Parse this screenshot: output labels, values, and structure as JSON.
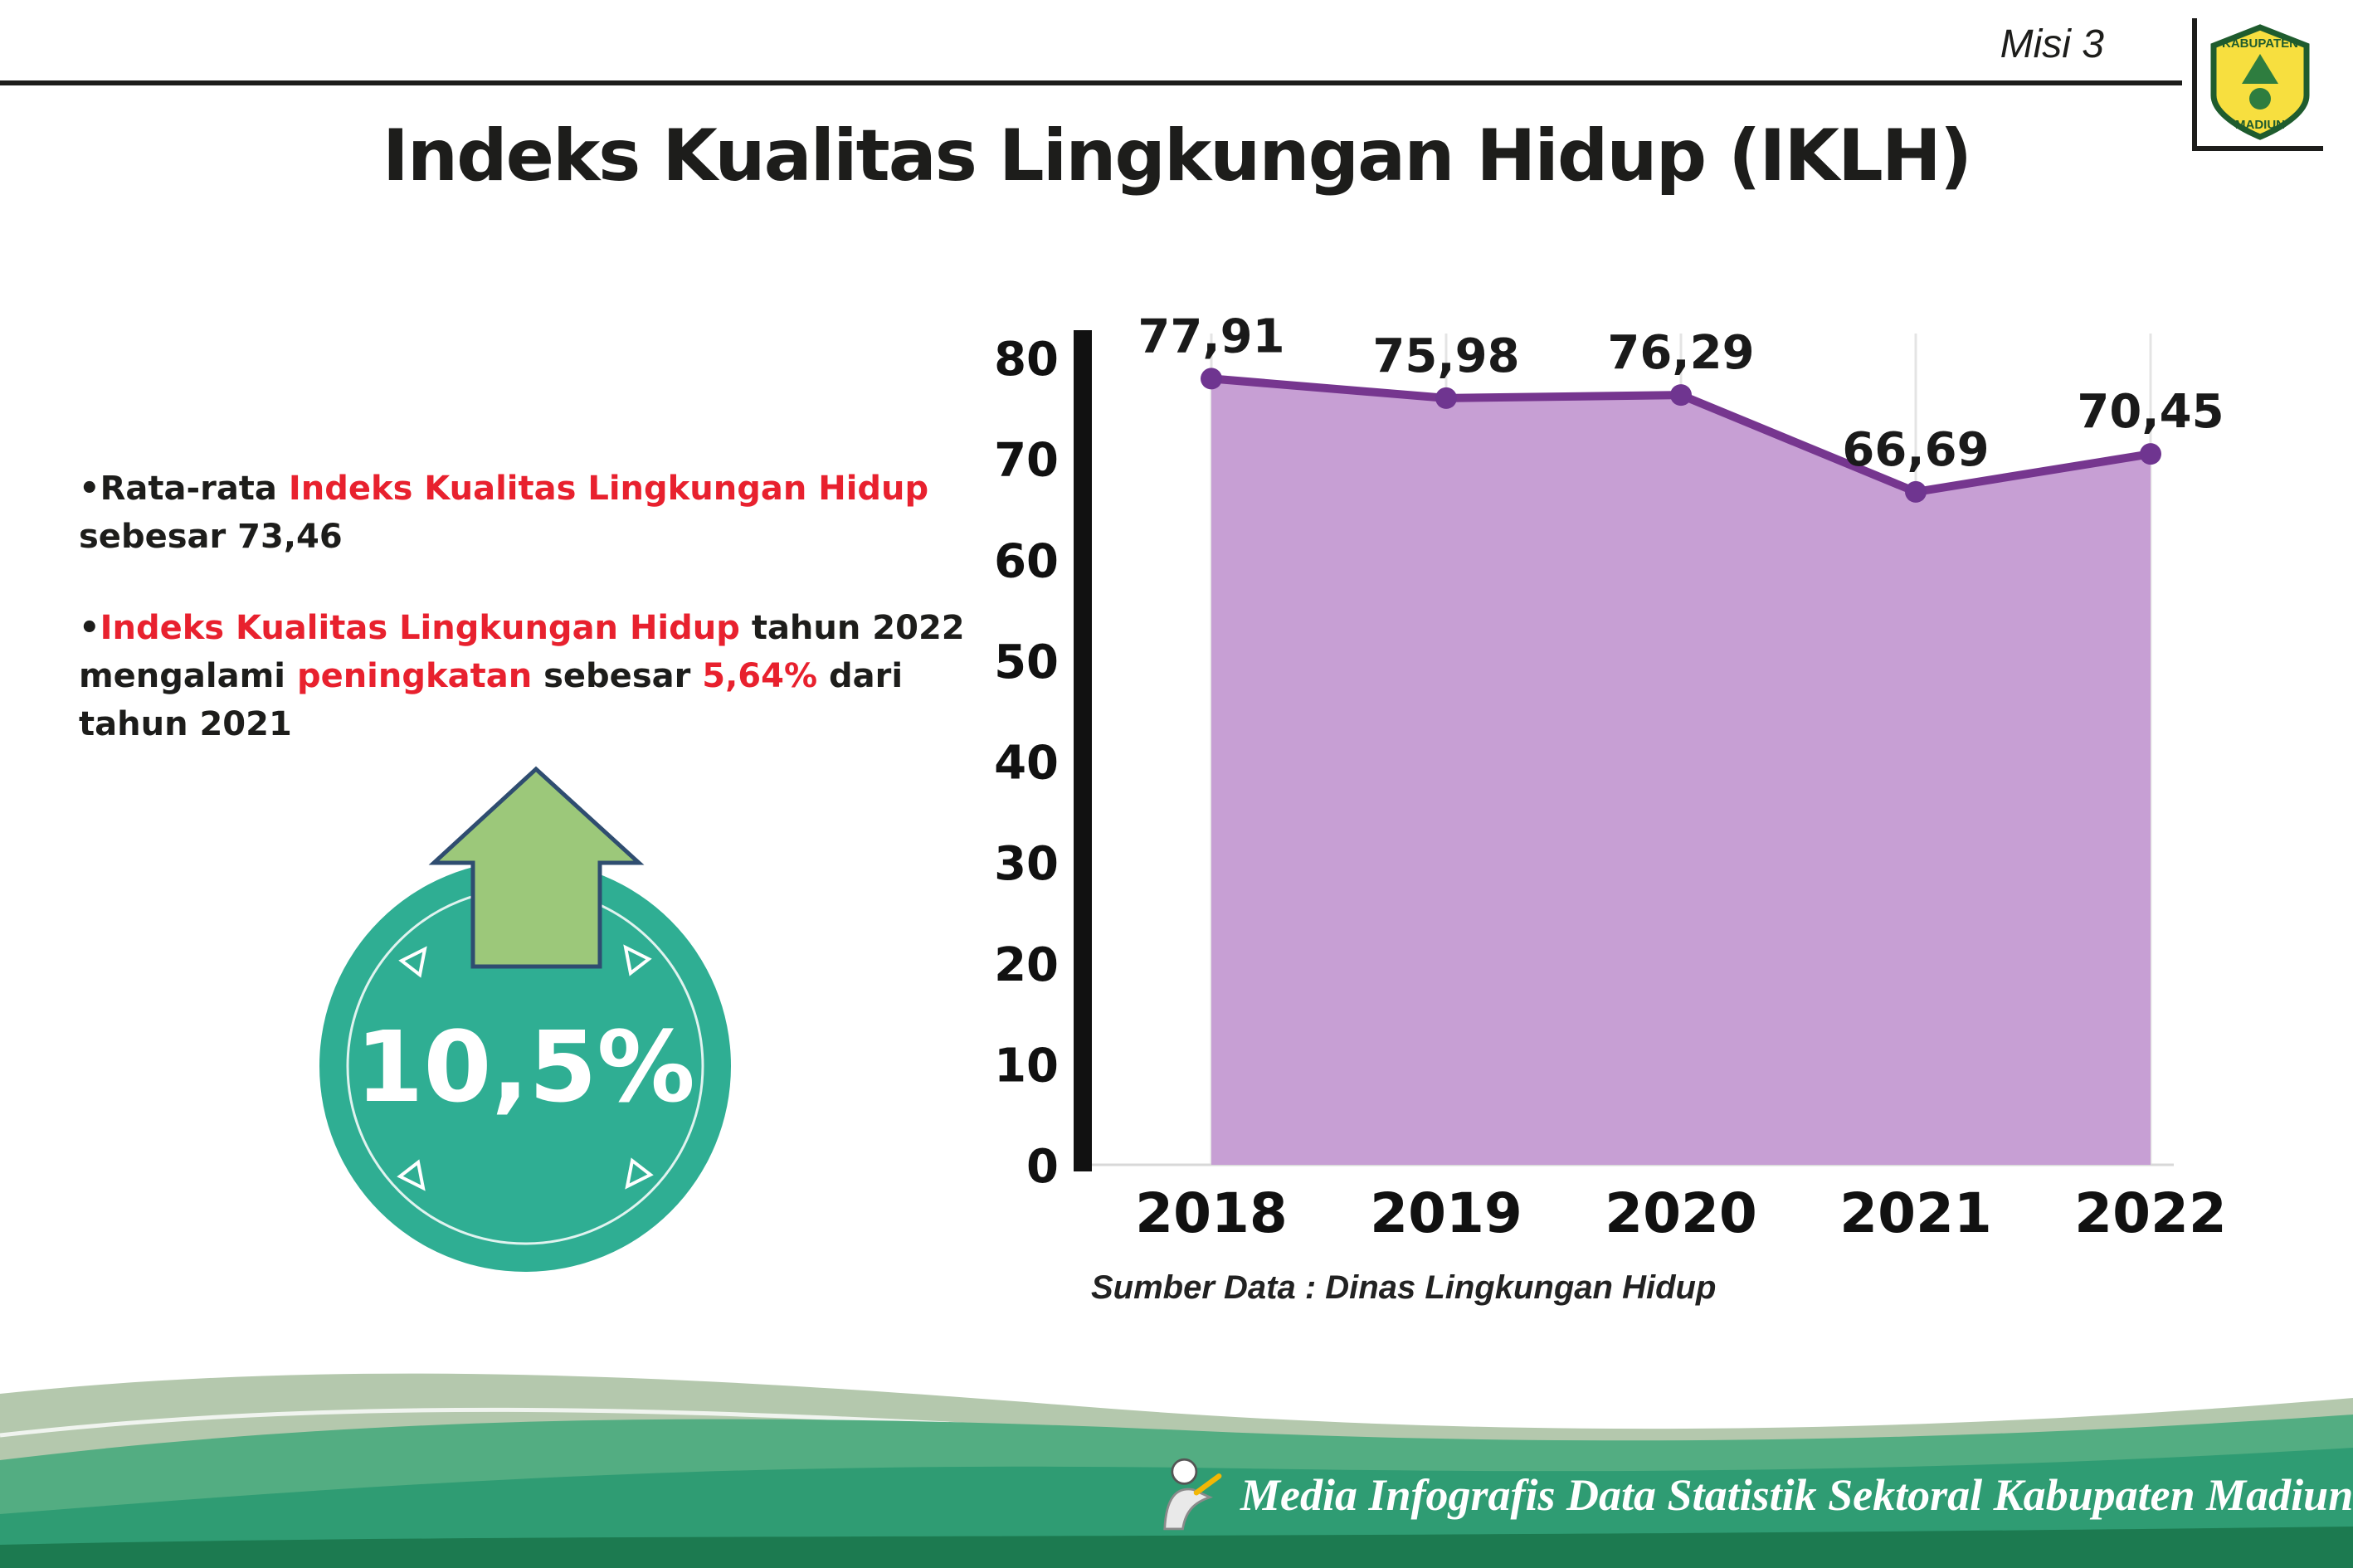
{
  "header": {
    "misi": "Misi 3",
    "title": "Indeks Kualitas Lingkungan Hidup (IKLH)"
  },
  "logo": {
    "top_text": "KABUPATEN",
    "bottom_text": "MADIUN"
  },
  "bullets": {
    "b1": [
      {
        "text": "•",
        "color": "dark"
      },
      {
        "text": "Rata-rata ",
        "color": "dark"
      },
      {
        "text": "Indeks Kualitas Lingkungan Hidup",
        "color": "red"
      },
      {
        "text": " sebesar 73,46",
        "color": "dark"
      }
    ],
    "b2": [
      {
        "text": "•",
        "color": "dark"
      },
      {
        "text": "Indeks Kualitas Lingkungan Hidup",
        "color": "red"
      },
      {
        "text": " tahun 2022 mengalami ",
        "color": "dark"
      },
      {
        "text": "peningkatan",
        "color": "red"
      },
      {
        "text": " sebesar ",
        "color": "dark"
      },
      {
        "text": "5,64%",
        "color": "red"
      },
      {
        "text": " dari tahun 2021",
        "color": "dark"
      }
    ]
  },
  "badge": {
    "value": "10,5%",
    "circle_color": "#2fae93",
    "arrow_color": "#9cc87a"
  },
  "chart_data": {
    "type": "area",
    "categories": [
      "2018",
      "2019",
      "2020",
      "2021",
      "2022"
    ],
    "values": [
      77.91,
      75.98,
      76.29,
      66.69,
      70.45
    ],
    "value_labels": [
      "77,91",
      "75,98",
      "76,29",
      "66,69",
      "70,45"
    ],
    "ylim": [
      0,
      80
    ],
    "yticks": [
      0,
      10,
      20,
      30,
      40,
      50,
      60,
      70,
      80
    ],
    "grid": "vertical-light",
    "legend": "none",
    "title": "Indeks Kualitas Lingkungan Hidup (IKLH)",
    "xlabel": "",
    "ylabel": "",
    "line_color": "#76368f",
    "point_color": "#6f3590",
    "fill_color": "#c79fd4",
    "source": "Sumber Data : Dinas Lingkungan Hidup"
  },
  "footer": {
    "caption": "Media Infografis Data Statistik Sektoral Kabupaten Madiun |"
  },
  "colors": {
    "red_accent": "#e8212e",
    "dark_text": "#1d1d1b",
    "teal_badge": "#2fae93",
    "arrow_green": "#9cc87a",
    "wave_sage": "#b4c8ad",
    "wave_mid_green": "#53ad82",
    "wave_teal": "#2f9c73",
    "wave_dark": "#1c7a50"
  }
}
